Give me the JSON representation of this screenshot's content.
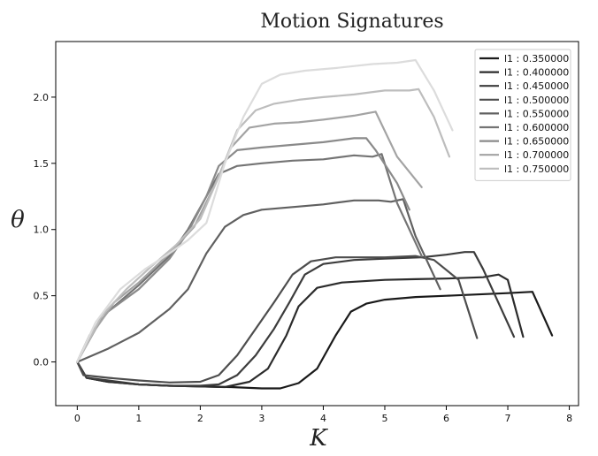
{
  "chart_data": {
    "type": "line",
    "title": "Motion Signatures",
    "xlabel": "K",
    "ylabel": "θ",
    "xlim": [
      -0.35,
      8.15
    ],
    "ylim": [
      -0.33,
      2.42
    ],
    "xticks": [
      0,
      1,
      2,
      3,
      4,
      5,
      6,
      7,
      8
    ],
    "yticks": [
      0.0,
      0.5,
      1.0,
      1.5,
      2.0
    ],
    "xtick_labels": [
      "0",
      "1",
      "2",
      "3",
      "4",
      "5",
      "6",
      "7",
      "8"
    ],
    "ytick_labels": [
      "0.0",
      "0.5",
      "1.0",
      "1.5",
      "2.0"
    ],
    "grid": false,
    "legend_position": "top-right",
    "series": [
      {
        "name": "l1 : 0.350000",
        "color": "#1a1a1a",
        "points": [
          [
            0,
            0
          ],
          [
            0.15,
            -0.12
          ],
          [
            0.5,
            -0.15
          ],
          [
            1,
            -0.17
          ],
          [
            1.5,
            -0.18
          ],
          [
            2,
            -0.185
          ],
          [
            2.5,
            -0.19
          ],
          [
            3,
            -0.2
          ],
          [
            3.3,
            -0.2
          ],
          [
            3.6,
            -0.16
          ],
          [
            3.9,
            -0.05
          ],
          [
            4.2,
            0.2
          ],
          [
            4.45,
            0.38
          ],
          [
            4.7,
            0.44
          ],
          [
            5,
            0.47
          ],
          [
            5.5,
            0.49
          ],
          [
            6,
            0.5
          ],
          [
            6.5,
            0.51
          ],
          [
            7,
            0.52
          ],
          [
            7.4,
            0.53
          ],
          [
            7.72,
            0.2
          ]
        ]
      },
      {
        "name": "l1 : 0.400000",
        "color": "#2b2b2b",
        "points": [
          [
            0,
            0
          ],
          [
            0.15,
            -0.12
          ],
          [
            0.5,
            -0.15
          ],
          [
            1,
            -0.17
          ],
          [
            1.5,
            -0.18
          ],
          [
            2,
            -0.185
          ],
          [
            2.4,
            -0.19
          ],
          [
            2.8,
            -0.15
          ],
          [
            3.1,
            -0.05
          ],
          [
            3.4,
            0.2
          ],
          [
            3.6,
            0.42
          ],
          [
            3.9,
            0.56
          ],
          [
            4.3,
            0.6
          ],
          [
            5,
            0.62
          ],
          [
            5.5,
            0.625
          ],
          [
            6,
            0.63
          ],
          [
            6.6,
            0.64
          ],
          [
            6.85,
            0.66
          ],
          [
            7.0,
            0.62
          ],
          [
            7.25,
            0.19
          ]
        ]
      },
      {
        "name": "l1 : 0.450000",
        "color": "#3c3c3c",
        "points": [
          [
            0,
            0
          ],
          [
            0.15,
            -0.12
          ],
          [
            0.5,
            -0.14
          ],
          [
            1,
            -0.17
          ],
          [
            1.5,
            -0.18
          ],
          [
            2,
            -0.18
          ],
          [
            2.3,
            -0.17
          ],
          [
            2.6,
            -0.1
          ],
          [
            2.9,
            0.05
          ],
          [
            3.2,
            0.25
          ],
          [
            3.45,
            0.45
          ],
          [
            3.7,
            0.66
          ],
          [
            4,
            0.74
          ],
          [
            4.5,
            0.77
          ],
          [
            5,
            0.78
          ],
          [
            5.6,
            0.79
          ],
          [
            6,
            0.81
          ],
          [
            6.3,
            0.83
          ],
          [
            6.45,
            0.83
          ],
          [
            6.6,
            0.7
          ],
          [
            7.1,
            0.19
          ]
        ]
      },
      {
        "name": "l1 : 0.500000",
        "color": "#4d4d4d",
        "points": [
          [
            0,
            0
          ],
          [
            0.1,
            -0.1
          ],
          [
            0.5,
            -0.12
          ],
          [
            1,
            -0.14
          ],
          [
            1.5,
            -0.155
          ],
          [
            2,
            -0.15
          ],
          [
            2.3,
            -0.1
          ],
          [
            2.6,
            0.05
          ],
          [
            2.9,
            0.25
          ],
          [
            3.2,
            0.45
          ],
          [
            3.5,
            0.66
          ],
          [
            3.8,
            0.76
          ],
          [
            4.2,
            0.79
          ],
          [
            5,
            0.79
          ],
          [
            5.5,
            0.8
          ],
          [
            5.8,
            0.77
          ],
          [
            6.2,
            0.62
          ],
          [
            6.5,
            0.18
          ]
        ]
      },
      {
        "name": "l1 : 0.550000",
        "color": "#606060",
        "points": [
          [
            0,
            0
          ],
          [
            0.5,
            0.1
          ],
          [
            1,
            0.22
          ],
          [
            1.5,
            0.4
          ],
          [
            1.8,
            0.55
          ],
          [
            2.1,
            0.82
          ],
          [
            2.4,
            1.02
          ],
          [
            2.7,
            1.11
          ],
          [
            3,
            1.15
          ],
          [
            3.5,
            1.17
          ],
          [
            4,
            1.19
          ],
          [
            4.5,
            1.22
          ],
          [
            4.9,
            1.22
          ],
          [
            5.1,
            1.21
          ],
          [
            5.3,
            1.23
          ],
          [
            5.5,
            0.95
          ],
          [
            5.9,
            0.55
          ]
        ]
      },
      {
        "name": "l1 : 0.600000",
        "color": "#747474",
        "points": [
          [
            0,
            0
          ],
          [
            0.2,
            0.2
          ],
          [
            0.5,
            0.38
          ],
          [
            1,
            0.58
          ],
          [
            1.5,
            0.8
          ],
          [
            1.8,
            1.0
          ],
          [
            2.1,
            1.25
          ],
          [
            2.3,
            1.42
          ],
          [
            2.6,
            1.48
          ],
          [
            3,
            1.5
          ],
          [
            3.5,
            1.52
          ],
          [
            4,
            1.53
          ],
          [
            4.5,
            1.56
          ],
          [
            4.8,
            1.55
          ],
          [
            4.95,
            1.57
          ],
          [
            5.2,
            1.2
          ],
          [
            5.6,
            0.8
          ]
        ]
      },
      {
        "name": "l1 : 0.650000",
        "color": "#8a8a8a",
        "points": [
          [
            0,
            0
          ],
          [
            0.2,
            0.2
          ],
          [
            0.5,
            0.38
          ],
          [
            1,
            0.55
          ],
          [
            1.5,
            0.78
          ],
          [
            1.8,
            0.98
          ],
          [
            2.1,
            1.25
          ],
          [
            2.3,
            1.48
          ],
          [
            2.6,
            1.6
          ],
          [
            3,
            1.62
          ],
          [
            3.5,
            1.64
          ],
          [
            4,
            1.66
          ],
          [
            4.5,
            1.69
          ],
          [
            4.7,
            1.69
          ],
          [
            4.85,
            1.6
          ],
          [
            5.2,
            1.35
          ],
          [
            5.4,
            1.15
          ]
        ]
      },
      {
        "name": "l1 : 0.700000",
        "color": "#a3a3a3",
        "points": [
          [
            0,
            0
          ],
          [
            0.3,
            0.25
          ],
          [
            0.6,
            0.45
          ],
          [
            1,
            0.6
          ],
          [
            1.5,
            0.82
          ],
          [
            1.9,
            1.02
          ],
          [
            2.2,
            1.3
          ],
          [
            2.5,
            1.62
          ],
          [
            2.8,
            1.77
          ],
          [
            3.2,
            1.8
          ],
          [
            3.6,
            1.81
          ],
          [
            4,
            1.83
          ],
          [
            4.5,
            1.86
          ],
          [
            4.85,
            1.89
          ],
          [
            5.2,
            1.55
          ],
          [
            5.6,
            1.32
          ]
        ]
      },
      {
        "name": "l1 : 0.750000",
        "color": "#bdbdbd",
        "points": [
          [
            0,
            0
          ],
          [
            0.4,
            0.35
          ],
          [
            0.8,
            0.55
          ],
          [
            1.2,
            0.72
          ],
          [
            1.6,
            0.88
          ],
          [
            2.0,
            1.08
          ],
          [
            2.3,
            1.4
          ],
          [
            2.6,
            1.75
          ],
          [
            2.9,
            1.9
          ],
          [
            3.2,
            1.95
          ],
          [
            3.6,
            1.98
          ],
          [
            4,
            2.0
          ],
          [
            4.5,
            2.02
          ],
          [
            5,
            2.05
          ],
          [
            5.4,
            2.05
          ],
          [
            5.55,
            2.06
          ],
          [
            5.8,
            1.85
          ],
          [
            6.05,
            1.55
          ]
        ]
      },
      {
        "name": "l1 : 0.750000 (top)",
        "color": "#dcdcdc",
        "points": [
          [
            0,
            0
          ],
          [
            0.3,
            0.3
          ],
          [
            0.7,
            0.55
          ],
          [
            1.1,
            0.7
          ],
          [
            1.5,
            0.82
          ],
          [
            1.8,
            0.92
          ],
          [
            2.1,
            1.05
          ],
          [
            2.4,
            1.5
          ],
          [
            2.7,
            1.85
          ],
          [
            3,
            2.1
          ],
          [
            3.3,
            2.17
          ],
          [
            3.7,
            2.2
          ],
          [
            4.2,
            2.22
          ],
          [
            4.8,
            2.25
          ],
          [
            5.2,
            2.26
          ],
          [
            5.5,
            2.28
          ],
          [
            5.8,
            2.05
          ],
          [
            6.1,
            1.75
          ]
        ]
      }
    ],
    "legend": [
      "l1 : 0.350000",
      "l1 : 0.400000",
      "l1 : 0.450000",
      "l1 : 0.500000",
      "l1 : 0.550000",
      "l1 : 0.600000",
      "l1 : 0.650000",
      "l1 : 0.700000",
      "l1 : 0.750000"
    ]
  }
}
